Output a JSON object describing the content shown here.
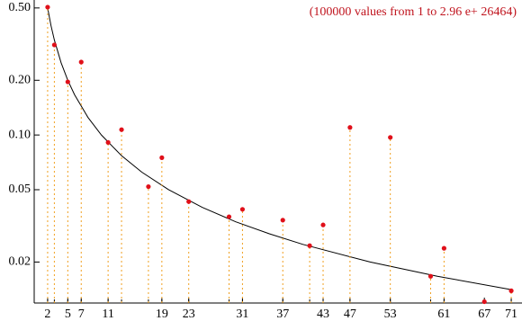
{
  "chart_data": {
    "type": "scatter",
    "annotation": "(100000 values from  1 to  2.96 e+ 26464)",
    "annotation_color": "#c0141e",
    "x": [
      2,
      3,
      5,
      7,
      11,
      13,
      17,
      19,
      23,
      29,
      31,
      37,
      41,
      43,
      47,
      53,
      59,
      61,
      67,
      71
    ],
    "series": [
      {
        "color": "#e0101a",
        "drop_line_color": "#f0a020",
        "values": [
          0.505,
          0.313,
          0.196,
          0.252,
          0.091,
          0.107,
          0.052,
          0.075,
          0.043,
          0.0355,
          0.039,
          0.034,
          0.0246,
          0.032,
          0.11,
          0.097,
          0.0167,
          0.0238,
          0.0121,
          0.0139
        ]
      }
    ],
    "curve": {
      "color": "#000000",
      "x": [
        2,
        2.5,
        3,
        4,
        5,
        6,
        8,
        10,
        13,
        16,
        20,
        25,
        30,
        35,
        40,
        50,
        60,
        71
      ],
      "values": [
        0.5,
        0.4,
        0.3333,
        0.25,
        0.2,
        0.1667,
        0.125,
        0.1,
        0.0769,
        0.0625,
        0.05,
        0.04,
        0.0333,
        0.0286,
        0.025,
        0.02,
        0.0167,
        0.0141
      ]
    },
    "log_y": true,
    "xlim": [
      0,
      72.6
    ],
    "ylim": [
      0.0119,
      0.553
    ],
    "xticks": [
      2,
      5,
      7,
      11,
      19,
      23,
      31,
      37,
      43,
      47,
      53,
      61,
      67,
      71
    ],
    "yticks": [
      {
        "value": 0.5,
        "label": "0.50"
      },
      {
        "value": 0.2,
        "label": "0.20"
      },
      {
        "value": 0.1,
        "label": "0.10"
      },
      0.05,
      0.02
    ]
  }
}
